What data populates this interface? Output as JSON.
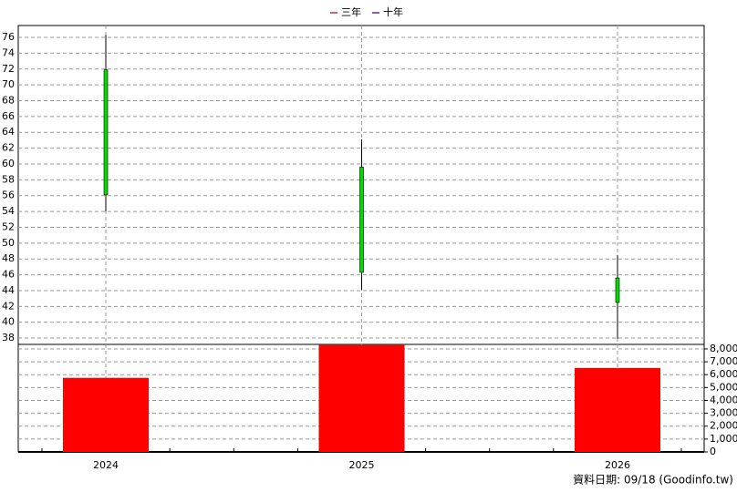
{
  "chart_data": {
    "type": "candlestick",
    "legend": [
      {
        "name": "三年",
        "color": "#d02060"
      },
      {
        "name": "十年",
        "color": "#6020c0"
      }
    ],
    "categories": [
      "2024",
      "2025",
      "2026"
    ],
    "open": [
      71.9,
      59.6,
      42.5
    ],
    "high": [
      76.3,
      63.1,
      48.5
    ],
    "low": [
      54.0,
      44.1,
      37.9
    ],
    "close": [
      56.1,
      46.3,
      45.6
    ],
    "candle_color": "#00dd00",
    "ylim": [
      37.2,
      77.5
    ],
    "yticks": [
      38,
      40,
      42,
      44,
      46,
      48,
      50,
      52,
      54,
      56,
      58,
      60,
      62,
      64,
      66,
      68,
      70,
      72,
      74,
      76
    ],
    "volume": {
      "values": [
        5750,
        8300,
        6520
      ],
      "color": "#ff0000"
    },
    "y2lim": [
      0,
      8350
    ],
    "y2ticks": [
      0,
      {
        "value": 1000,
        "label": "1,000"
      },
      {
        "value": 2000,
        "label": "2,000"
      },
      {
        "value": 3000,
        "label": "3,000"
      },
      {
        "value": 4000,
        "label": "4,000"
      },
      {
        "value": 5000,
        "label": "5,000"
      },
      {
        "value": 6000,
        "label": "6,000"
      },
      {
        "value": 7000,
        "label": "7,000"
      },
      {
        "value": 8000,
        "label": "8,000"
      }
    ],
    "grid": true,
    "footer": "資料日期: 09/18  (Goodinfo.tw)"
  }
}
